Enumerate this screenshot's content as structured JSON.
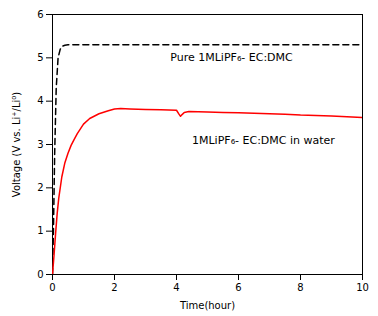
{
  "chart_data": {
    "type": "line",
    "xlabel": "Time(hour)",
    "ylabel": "Voltage (V vs. Li⁺/Li⁰)",
    "xlim": [
      0,
      10
    ],
    "ylim": [
      0,
      6
    ],
    "xticks": [
      0,
      2,
      4,
      6,
      8,
      10
    ],
    "yticks": [
      0,
      1,
      2,
      3,
      4,
      5,
      6
    ],
    "grid": false,
    "series": [
      {
        "color": "#000000",
        "line_style": "dashed",
        "x": [
          0,
          0.03,
          0.07,
          0.12,
          0.18,
          0.25,
          0.32,
          0.4,
          0.5,
          10.0
        ],
        "values": [
          0.0,
          1.0,
          2.8,
          4.3,
          5.0,
          5.2,
          5.27,
          5.29,
          5.3,
          5.3
        ]
      },
      {
        "color": "#ff0000",
        "line_style": "solid",
        "x": [
          0,
          0.05,
          0.1,
          0.15,
          0.2,
          0.3,
          0.4,
          0.5,
          0.6,
          0.7,
          0.8,
          1.0,
          1.2,
          1.5,
          1.8,
          2.0,
          2.2,
          2.5,
          3.0,
          3.5,
          4.0,
          4.08,
          4.13,
          4.18,
          4.25,
          4.4,
          5.0,
          5.5,
          6.0,
          6.5,
          7.0,
          7.5,
          8.0,
          8.5,
          9.0,
          9.5,
          10.0
        ],
        "values": [
          0.0,
          0.45,
          0.95,
          1.4,
          1.75,
          2.25,
          2.58,
          2.8,
          2.98,
          3.12,
          3.25,
          3.47,
          3.6,
          3.71,
          3.78,
          3.82,
          3.83,
          3.82,
          3.81,
          3.8,
          3.79,
          3.7,
          3.65,
          3.69,
          3.74,
          3.76,
          3.75,
          3.74,
          3.73,
          3.72,
          3.71,
          3.7,
          3.68,
          3.67,
          3.66,
          3.64,
          3.62
        ]
      }
    ],
    "annotations": [
      {
        "text": "Pure 1MLiPF₆- EC:DMC",
        "x": 3.8,
        "y": 5.0
      },
      {
        "text": "1MLiPF₆- EC:DMC in water",
        "x": 4.5,
        "y": 3.1
      }
    ]
  }
}
